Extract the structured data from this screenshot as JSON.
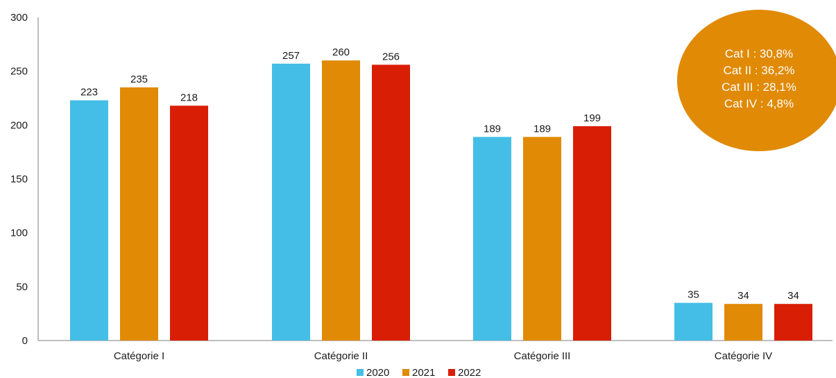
{
  "chart_data": {
    "type": "bar",
    "categories": [
      "Catégorie I",
      "Catégorie II",
      "Catégorie III",
      "Catégorie IV"
    ],
    "series": [
      {
        "name": "2020",
        "values": [
          223,
          257,
          189,
          35
        ],
        "color": "#44BEE6"
      },
      {
        "name": "2021",
        "values": [
          235,
          260,
          189,
          34
        ],
        "color": "#E08A06"
      },
      {
        "name": "2022",
        "values": [
          218,
          256,
          199,
          34
        ],
        "color": "#D91E06"
      }
    ],
    "yticks": [
      "0",
      "50",
      "100",
      "150",
      "200",
      "250",
      "300"
    ],
    "ylim": [
      0,
      300
    ],
    "grid": false,
    "legend_position": "bottom-center",
    "annotation": {
      "color": "#E08A06",
      "lines": [
        "Cat I : 30,8%",
        "Cat II : 36,2%",
        "Cat III : 28,1%",
        "Cat IV : 4,8%"
      ]
    }
  }
}
